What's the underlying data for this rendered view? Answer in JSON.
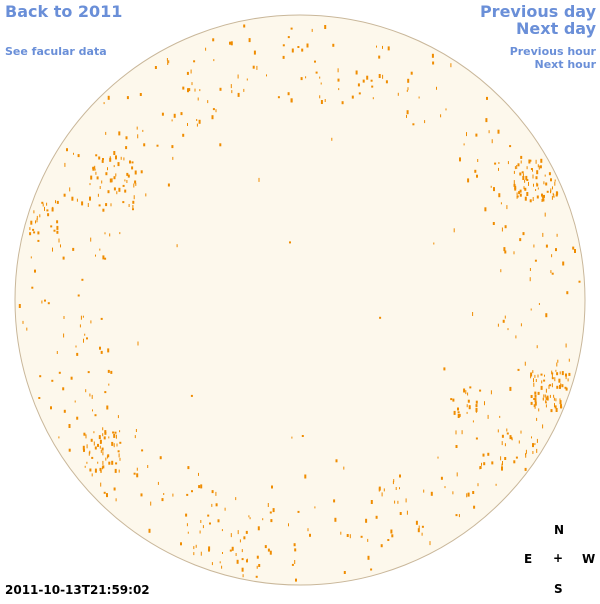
{
  "nav": {
    "back_year": "Back to 2011",
    "facular_data": "See facular data",
    "previous_day": "Previous day",
    "next_day": "Next day",
    "previous_hour": "Previous hour",
    "next_hour": "Next hour"
  },
  "compass": {
    "north": "N",
    "south": "S",
    "east": "E",
    "west": "W",
    "center": "+"
  },
  "timestamp": "2011-10-13T21:59:02",
  "colors": {
    "disk_fill": "#fdf8ec",
    "disk_stroke": "#c9b79a",
    "facula": "#ef8c00",
    "link": "#6a8fd8"
  }
}
